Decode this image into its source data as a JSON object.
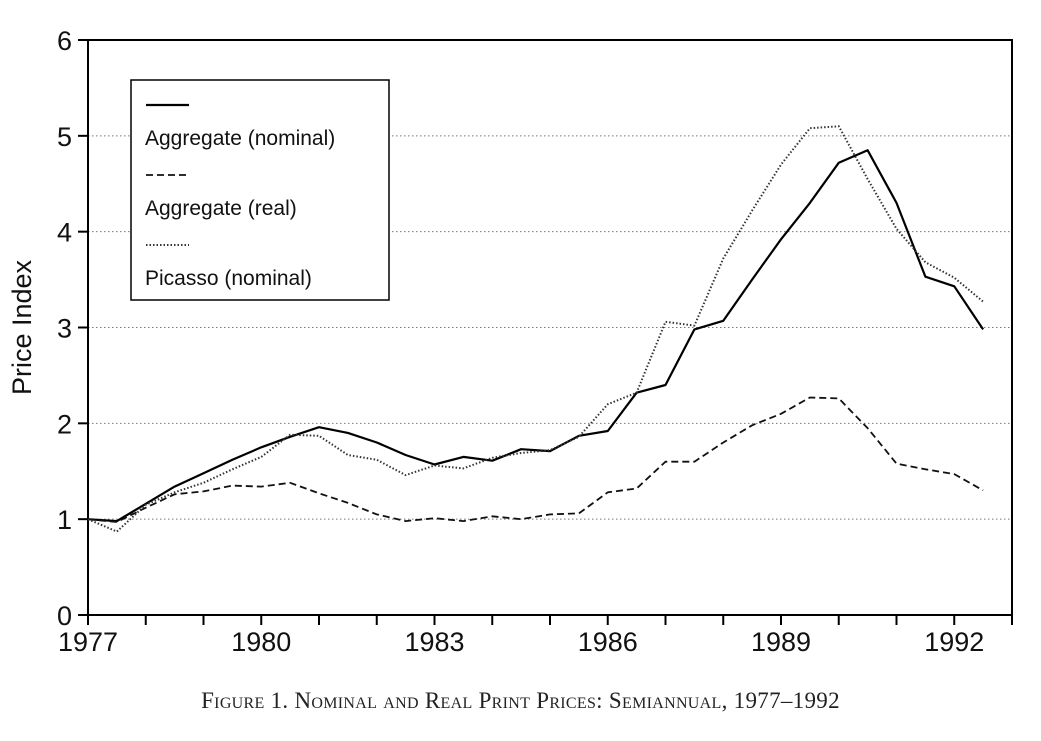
{
  "caption": "Figure 1. Nominal and Real Print Prices: Semiannual, 1977–1992",
  "chart_data": {
    "type": "line",
    "title": "",
    "xlabel": "",
    "ylabel": "Price Index",
    "xlim": [
      1977,
      1993
    ],
    "ylim": [
      0,
      6
    ],
    "yticks": [
      0,
      1,
      2,
      3,
      4,
      5,
      6
    ],
    "xtick_labels": [
      "1977",
      "1980",
      "1983",
      "1986",
      "1989",
      "1992"
    ],
    "xtick_values": [
      1977,
      1980,
      1983,
      1986,
      1989,
      1992
    ],
    "x_minor_step": 1,
    "grid": "horizontal dotted",
    "legend_placement": "top-left",
    "x": [
      1977,
      1977.5,
      1978,
      1978.5,
      1979,
      1979.5,
      1980,
      1980.5,
      1981,
      1981.5,
      1982,
      1982.5,
      1983,
      1983.5,
      1984,
      1984.5,
      1985,
      1985.5,
      1986,
      1986.5,
      1987,
      1987.5,
      1988,
      1988.5,
      1989,
      1989.5,
      1990,
      1990.5,
      1991,
      1991.5,
      1992,
      1992.5
    ],
    "series": [
      {
        "name": "Aggregate (nominal)",
        "style": "solid",
        "values": [
          1.0,
          0.98,
          1.16,
          1.34,
          1.48,
          1.62,
          1.75,
          1.86,
          1.96,
          1.9,
          1.8,
          1.67,
          1.57,
          1.65,
          1.61,
          1.73,
          1.71,
          1.87,
          1.92,
          2.32,
          2.4,
          2.98,
          3.07,
          3.5,
          3.92,
          4.3,
          4.72,
          4.85,
          4.3,
          3.53,
          3.43,
          2.98
        ]
      },
      {
        "name": "Aggregate (real)",
        "style": "dashed",
        "values": [
          1.0,
          0.97,
          1.12,
          1.26,
          1.29,
          1.35,
          1.34,
          1.38,
          1.27,
          1.17,
          1.05,
          0.98,
          1.01,
          0.98,
          1.03,
          1.0,
          1.05,
          1.06,
          1.28,
          1.32,
          1.6,
          1.6,
          1.8,
          1.98,
          2.1,
          2.27,
          2.26,
          1.95,
          1.58,
          1.52,
          1.47,
          1.3
        ]
      },
      {
        "name": "Picasso (nominal)",
        "style": "dotted",
        "values": [
          1.0,
          0.87,
          1.15,
          1.28,
          1.38,
          1.52,
          1.65,
          1.88,
          1.87,
          1.67,
          1.62,
          1.46,
          1.56,
          1.53,
          1.64,
          1.69,
          1.72,
          1.86,
          2.2,
          2.32,
          3.06,
          3.02,
          3.72,
          4.22,
          4.7,
          5.08,
          5.1,
          4.55,
          4.03,
          3.68,
          3.52,
          3.27
        ]
      }
    ]
  }
}
